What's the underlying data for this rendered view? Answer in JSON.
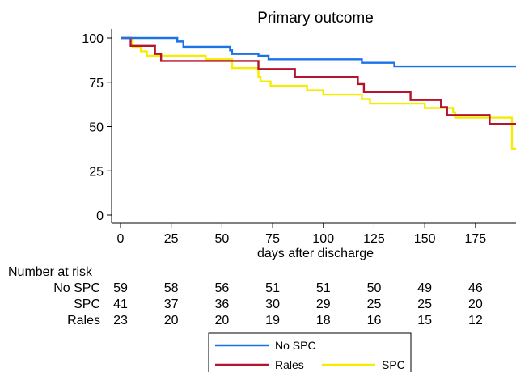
{
  "chart_data": {
    "type": "line",
    "title": "Primary outcome",
    "xlabel": "days after discharge",
    "ylabel": "",
    "xlim": [
      0,
      195
    ],
    "ylim": [
      0,
      100
    ],
    "x_ticks": [
      0,
      25,
      50,
      75,
      100,
      125,
      150,
      175
    ],
    "y_ticks": [
      0,
      25,
      50,
      75,
      100
    ],
    "grid": false,
    "step": true,
    "series": [
      {
        "name": "No SPC",
        "color": "#1a73e8",
        "points": [
          [
            0,
            100
          ],
          [
            28,
            100
          ],
          [
            28,
            98
          ],
          [
            31,
            98
          ],
          [
            31,
            95
          ],
          [
            54,
            95
          ],
          [
            54,
            93
          ],
          [
            55,
            93
          ],
          [
            55,
            91
          ],
          [
            68,
            91
          ],
          [
            68,
            90
          ],
          [
            73,
            90
          ],
          [
            73,
            88
          ],
          [
            119,
            88
          ],
          [
            119,
            86
          ],
          [
            135,
            86
          ],
          [
            135,
            84
          ],
          [
            195,
            84
          ]
        ]
      },
      {
        "name": "Rales",
        "color": "#b5142d",
        "points": [
          [
            0,
            100
          ],
          [
            5,
            100
          ],
          [
            5,
            95.5
          ],
          [
            17,
            95.5
          ],
          [
            17,
            91
          ],
          [
            20,
            91
          ],
          [
            20,
            87
          ],
          [
            68,
            87
          ],
          [
            68,
            82.5
          ],
          [
            86,
            82.5
          ],
          [
            86,
            78
          ],
          [
            117,
            78
          ],
          [
            117,
            74
          ],
          [
            120,
            74
          ],
          [
            120,
            69.5
          ],
          [
            143,
            69.5
          ],
          [
            143,
            65
          ],
          [
            158,
            65
          ],
          [
            158,
            61
          ],
          [
            161,
            61
          ],
          [
            161,
            56.5
          ],
          [
            182,
            56.5
          ],
          [
            182,
            51.5
          ],
          [
            195,
            51.5
          ]
        ]
      },
      {
        "name": "SPC",
        "color": "#f5ec00",
        "points": [
          [
            0,
            100
          ],
          [
            6,
            100
          ],
          [
            6,
            95
          ],
          [
            10,
            95
          ],
          [
            10,
            92.5
          ],
          [
            13,
            92.5
          ],
          [
            13,
            90
          ],
          [
            42,
            90
          ],
          [
            42,
            88
          ],
          [
            55,
            88
          ],
          [
            55,
            83
          ],
          [
            68,
            83
          ],
          [
            68,
            78
          ],
          [
            69,
            78
          ],
          [
            69,
            75.5
          ],
          [
            74,
            75.5
          ],
          [
            74,
            73
          ],
          [
            92,
            73
          ],
          [
            92,
            70.5
          ],
          [
            100,
            70.5
          ],
          [
            100,
            68
          ],
          [
            119,
            68
          ],
          [
            119,
            65.5
          ],
          [
            123,
            65.5
          ],
          [
            123,
            63
          ],
          [
            150,
            63
          ],
          [
            150,
            60.5
          ],
          [
            164,
            60.5
          ],
          [
            164,
            58
          ],
          [
            165,
            58
          ],
          [
            165,
            55
          ],
          [
            193,
            55
          ],
          [
            193,
            37.5
          ],
          [
            195,
            37.5
          ]
        ]
      }
    ],
    "risk_table": {
      "title": "Number at risk",
      "time_points": [
        0,
        25,
        50,
        75,
        100,
        125,
        150,
        175
      ],
      "rows": [
        {
          "label": "No SPC",
          "values": [
            "59",
            "58",
            "56",
            "51",
            "51",
            "50",
            "49",
            "46"
          ]
        },
        {
          "label": "SPC",
          "values": [
            "41",
            "37",
            "36",
            "30",
            "29",
            "25",
            "25",
            "20"
          ]
        },
        {
          "label": "Rales",
          "values": [
            "23",
            "20",
            "20",
            "19",
            "18",
            "16",
            "15",
            "12"
          ]
        }
      ]
    },
    "legend": {
      "placement": "bottom",
      "entries": [
        {
          "series": "No SPC",
          "label": "No SPC"
        },
        {
          "series": "Rales",
          "label": "Rales"
        },
        {
          "series": "SPC",
          "label": "SPC"
        }
      ]
    }
  }
}
